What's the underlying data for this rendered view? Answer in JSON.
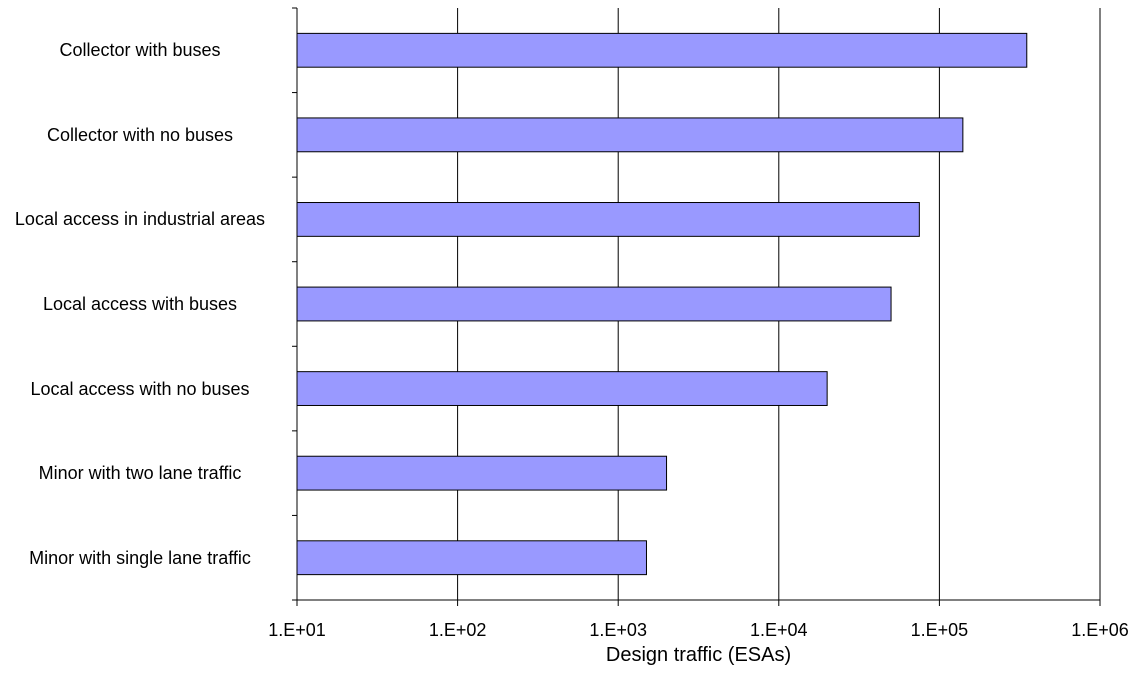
{
  "chart_data": {
    "type": "bar",
    "orientation": "horizontal",
    "x_scale": "log",
    "xlabel": "Design traffic (ESAs)",
    "xlim": [
      10,
      1000000
    ],
    "x_ticks": [
      10,
      100,
      1000,
      10000,
      100000,
      1000000
    ],
    "x_tick_labels": [
      "1.E+01",
      "1.E+02",
      "1.E+03",
      "1.E+04",
      "1.E+05",
      "1.E+06"
    ],
    "grid": "vertical",
    "legend": "none",
    "categories": [
      "Collector with buses",
      "Collector with no buses",
      "Local access in industrial areas",
      "Local access with buses",
      "Local access with no buses",
      "Minor with two lane traffic",
      "Minor with single lane traffic"
    ],
    "values": [
      350000,
      140000,
      75000,
      50000,
      20000,
      2000,
      1500
    ],
    "colors": {
      "bar_fill": "#9999ff",
      "bar_stroke": "#000000",
      "grid": "#000000"
    }
  }
}
